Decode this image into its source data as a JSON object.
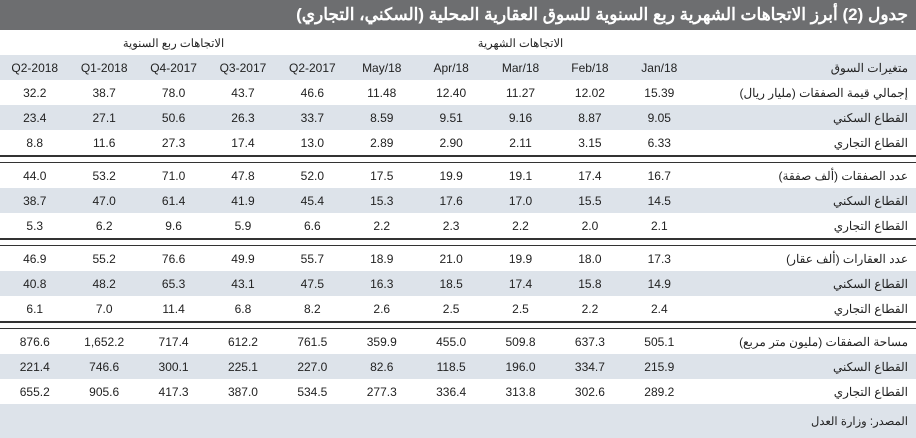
{
  "title": "جدول (2) أبرز الاتجاهات الشهرية ربع السنوية للسوق العقارية المحلية (السكني، التجاري)",
  "group_headers": {
    "monthly": "الاتجاهات الشهرية",
    "quarterly": "الاتجاهات ربع السنوية"
  },
  "columns": [
    "متغيرات السوق",
    "Jan/18",
    "Feb/18",
    "Mar/18",
    "Apr/18",
    "May/18",
    "2017-Q2",
    "2017-Q3",
    "2017-Q4",
    "2018-Q1",
    "2018-Q2"
  ],
  "groups": [
    {
      "rows": [
        {
          "label": "إجمالي قيمة الصفقات (مليار ريال)",
          "values": [
            "15.39",
            "12.02",
            "11.27",
            "12.40",
            "11.48",
            "46.6",
            "43.7",
            "78.0",
            "38.7",
            "32.2"
          ]
        },
        {
          "label": "القطاع السكني",
          "values": [
            "9.05",
            "8.87",
            "9.16",
            "9.51",
            "8.59",
            "33.7",
            "26.3",
            "50.6",
            "27.1",
            "23.4"
          ]
        },
        {
          "label": "القطاع التجاري",
          "values": [
            "6.33",
            "3.15",
            "2.11",
            "2.90",
            "2.89",
            "13.0",
            "17.4",
            "27.3",
            "11.6",
            "8.8"
          ]
        }
      ]
    },
    {
      "rows": [
        {
          "label": "عدد الصفقات (ألف صفقة)",
          "values": [
            "16.7",
            "17.4",
            "19.1",
            "19.9",
            "17.5",
            "52.0",
            "47.8",
            "71.0",
            "53.2",
            "44.0"
          ]
        },
        {
          "label": "القطاع السكني",
          "values": [
            "14.5",
            "15.5",
            "17.0",
            "17.6",
            "15.3",
            "45.4",
            "41.9",
            "61.4",
            "47.0",
            "38.7"
          ]
        },
        {
          "label": "القطاع التجاري",
          "values": [
            "2.1",
            "2.0",
            "2.2",
            "2.3",
            "2.2",
            "6.6",
            "5.9",
            "9.6",
            "6.2",
            "5.3"
          ]
        }
      ]
    },
    {
      "rows": [
        {
          "label": "عدد العقارات (ألف عقار)",
          "values": [
            "17.3",
            "18.0",
            "19.9",
            "21.0",
            "18.9",
            "55.7",
            "49.9",
            "76.6",
            "55.2",
            "46.9"
          ]
        },
        {
          "label": "القطاع السكني",
          "values": [
            "14.9",
            "15.8",
            "17.4",
            "18.5",
            "16.3",
            "47.5",
            "43.1",
            "65.3",
            "48.2",
            "40.8"
          ]
        },
        {
          "label": "القطاع التجاري",
          "values": [
            "2.4",
            "2.2",
            "2.5",
            "2.5",
            "2.6",
            "8.2",
            "6.8",
            "11.4",
            "7.0",
            "6.1"
          ]
        }
      ]
    },
    {
      "rows": [
        {
          "label": "مساحة الصفقات (مليون متر مربع)",
          "values": [
            "505.1",
            "637.3",
            "509.8",
            "455.0",
            "359.9",
            "761.5",
            "612.2",
            "717.4",
            "1,652.2",
            "876.6"
          ]
        },
        {
          "label": "القطاع السكني",
          "values": [
            "215.9",
            "334.7",
            "196.0",
            "118.5",
            "82.6",
            "227.0",
            "225.1",
            "300.1",
            "746.6",
            "221.4"
          ]
        },
        {
          "label": "القطاع التجاري",
          "values": [
            "289.2",
            "302.6",
            "313.8",
            "336.4",
            "277.3",
            "534.5",
            "387.0",
            "417.3",
            "905.6",
            "655.2"
          ]
        }
      ]
    }
  ],
  "source": "المصدر: وزارة العدل"
}
